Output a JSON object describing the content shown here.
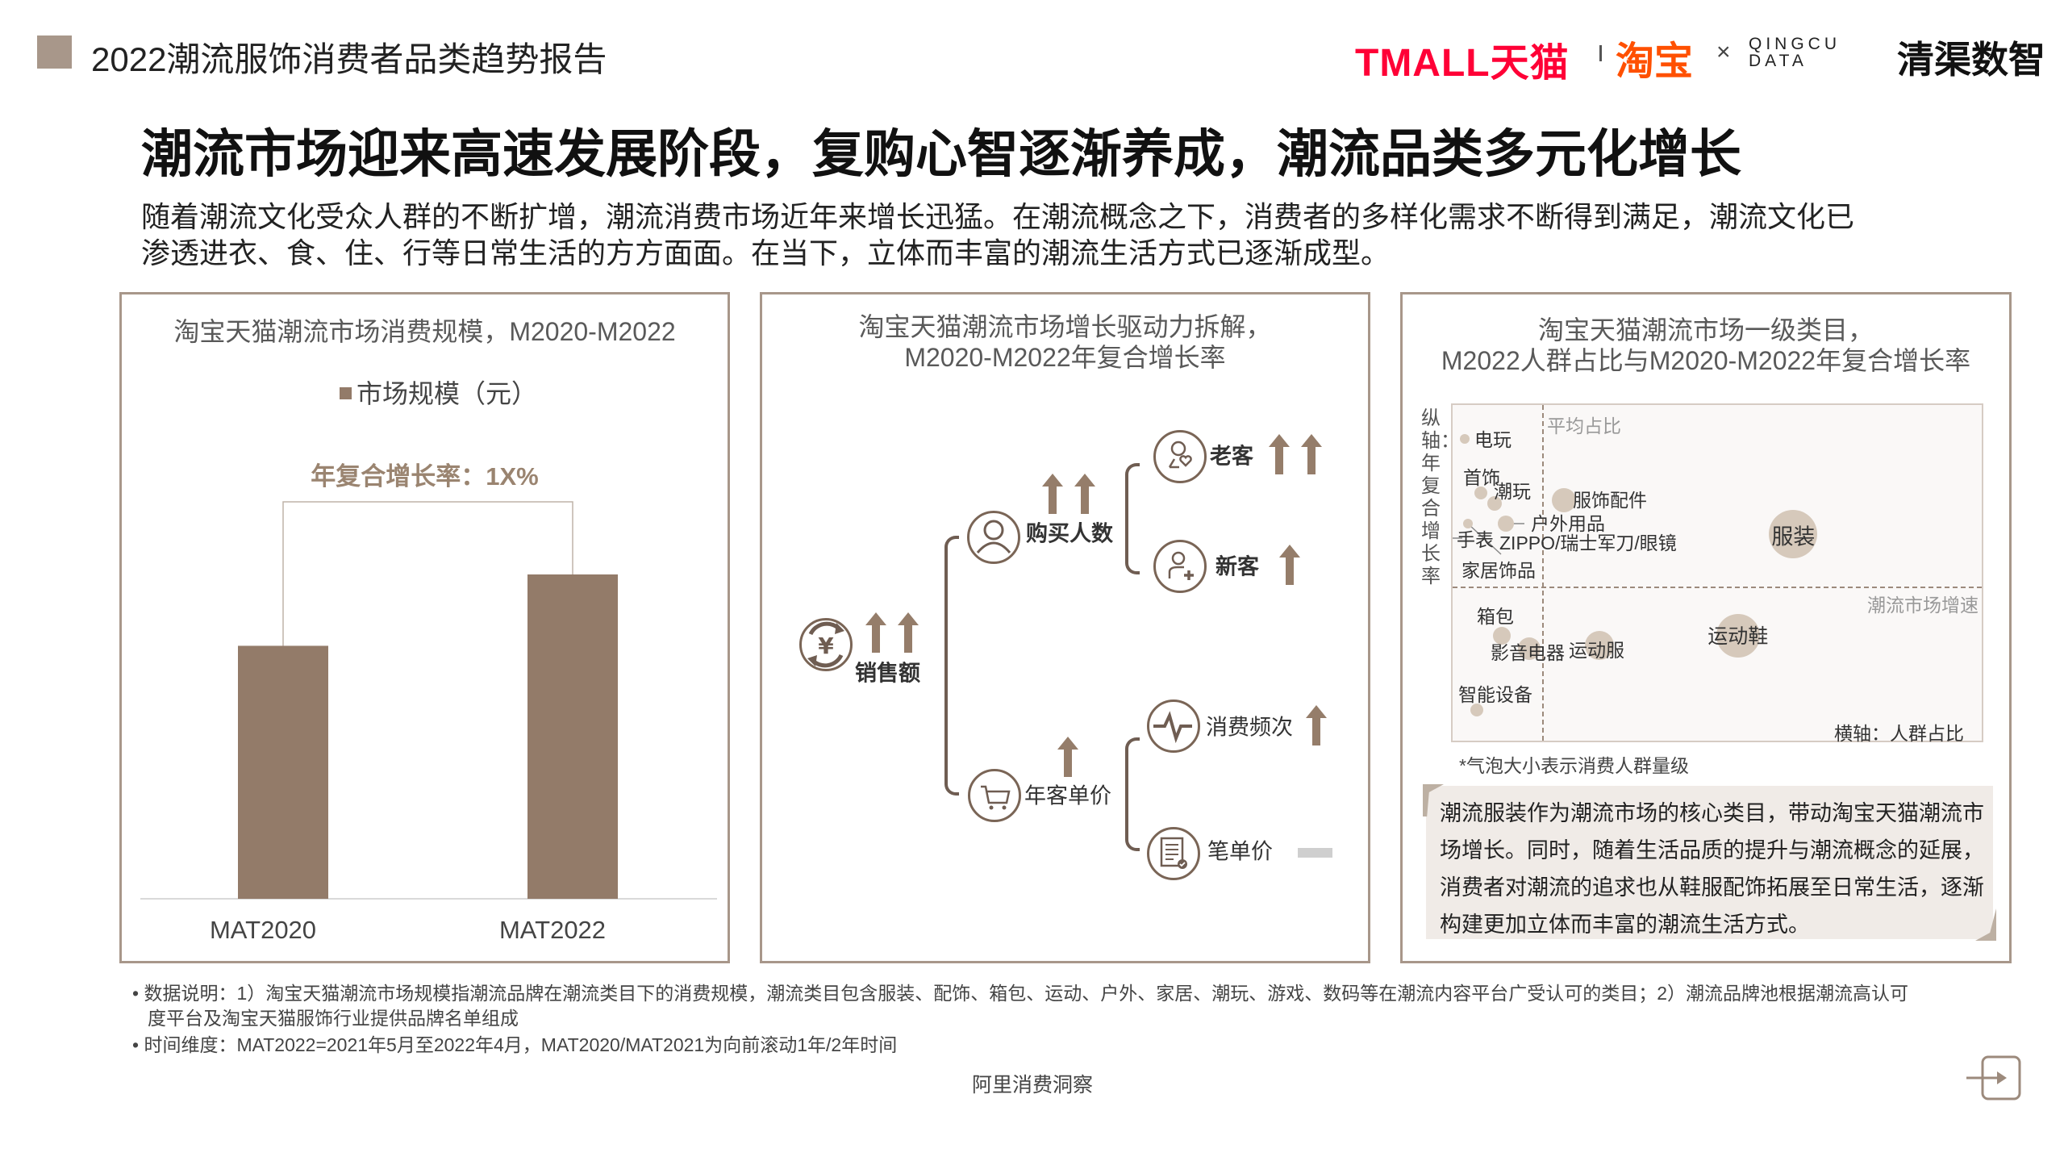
{
  "header": {
    "report_title": "2022潮流服饰消费者品类趋势报告",
    "logos": {
      "tmall": "TMALL天猫",
      "taobao": "淘宝",
      "times": "×",
      "qingqu_en_1": "QINGCU",
      "qingqu_en_2": "DATA",
      "qingqu_cn": "清渠数智"
    },
    "square_color": "#a8978a"
  },
  "headline": "潮流市场迎来高速发展阶段，复购心智逐渐养成，潮流品类多元化增长",
  "intro": [
    "随着潮流文化受众人群的不断扩增，潮流消费市场近年来增长迅猛。在潮流概念之下，消费者的多样化需求不断得到满足，潮流文化已",
    "渗透进衣、食、住、行等日常生活的方方面面。在当下，立体而丰富的潮流生活方式已逐渐成型。"
  ],
  "colors": {
    "accent": "#937b69",
    "border": "#a8978a",
    "bubble": "#d6c9bb",
    "note_bg": "#f0ebe7"
  },
  "chart_data": [
    {
      "type": "bar",
      "title": "淘宝天猫潮流市场消费规模，M2020-M2022",
      "legend": "市场规模（元）",
      "annotation": "年复合增长率：1X%",
      "categories": [
        "MAT2020",
        "MAT2022"
      ],
      "series": [
        {
          "name": "市场规模（元）",
          "values": [
            0.78,
            1.0
          ]
        }
      ],
      "grid": false,
      "legend_placement": "top"
    },
    {
      "type": "scatter",
      "title": [
        "淘宝天猫潮流市场一级类目，",
        "M2022人群占比与M2020-M2022年复合增长率"
      ],
      "ylabel": "纵轴：年复合增长率",
      "xlabel": "横轴：人群占比",
      "ref_x_label": "平均占比",
      "ref_y_label": "潮流市场增速",
      "ref_x": 17,
      "ref_y": 46,
      "note": "*气泡大小表示消费人群量级",
      "points": [
        {
          "label": "电玩",
          "x": 2.3,
          "y": 90,
          "size": 6
        },
        {
          "label": "首饰",
          "x": 5.3,
          "y": 74,
          "size": 8
        },
        {
          "label": "潮玩",
          "x": 7.9,
          "y": 71,
          "size": 9
        },
        {
          "label": "服饰配件",
          "x": 20.9,
          "y": 72,
          "size": 15
        },
        {
          "label": "户外用品",
          "x": 10,
          "y": 65,
          "size": 10
        },
        {
          "label": "手表",
          "x": 2.9,
          "y": 65,
          "size": 6
        },
        {
          "label": "ZIPPO/瑞士军刀/眼镜",
          "x": null,
          "y": null,
          "size": 0
        },
        {
          "label": "家居饰品",
          "x": null,
          "y": null,
          "size": 0
        },
        {
          "label": "服装",
          "x": 64,
          "y": 62,
          "size": 30
        },
        {
          "label": "箱包",
          "x": 9.2,
          "y": 32,
          "size": 11
        },
        {
          "label": "影音电器",
          "x": 14.4,
          "y": 28,
          "size": 14
        },
        {
          "label": "运动服",
          "x": 27.6,
          "y": 29,
          "size": 18
        },
        {
          "label": "运动鞋",
          "x": 53.6,
          "y": 32,
          "size": 27
        },
        {
          "label": "智能设备",
          "x": 4.5,
          "y": 10,
          "size": 8
        }
      ]
    }
  ],
  "driver": {
    "title": [
      "淘宝天猫潮流市场增长驱动力拆解，",
      "M2020-M2022年复合增长率"
    ],
    "root": {
      "label": "销售额",
      "arrows": 2,
      "icon": "yuan-cycle-icon"
    },
    "buyers": {
      "label": "购买人数",
      "arrows": 2,
      "icon": "user-icon"
    },
    "unit_price": {
      "label": "年客单价",
      "arrows": 1,
      "icon": "cart-icon"
    },
    "old": {
      "label": "老客",
      "arrows": 2,
      "icon": "user-heart-icon"
    },
    "new": {
      "label": "新客",
      "arrows": 1,
      "icon": "user-plus-icon"
    },
    "freq": {
      "label": "消费频次",
      "arrows": 1,
      "icon": "pulse-icon"
    },
    "order_price": {
      "label": "笔单价",
      "arrows": 0,
      "icon": "receipt-icon",
      "flat": true
    }
  },
  "note_box": [
    "潮流服装作为潮流市场的核心类目，带动淘宝天猫潮流市",
    "场增长。同时，随着生活品质的提升与潮流概念的延展，",
    "消费者对潮流的追求也从鞋服配饰拓展至日常生活，逐渐",
    "构建更加立体而丰富的潮流生活方式。"
  ],
  "footnotes": [
    "数据说明：1）淘宝天猫潮流市场规模指潮流品牌在潮流类目下的消费规模，潮流类目包含服装、配饰、箱包、运动、户外、家居、潮玩、游戏、数码等在潮流内容平台广受认可的类目；2）潮流品牌池根据潮流高认可",
    "度平台及淘宝天猫服饰行业提供品牌名单组成",
    "时间维度：MAT2022=2021年5月至2022年4月，MAT2020/MAT2021为向前滚动1年/2年时间"
  ],
  "footer": {
    "source": "阿里消费洞察",
    "next_icon": "next-page-icon"
  }
}
